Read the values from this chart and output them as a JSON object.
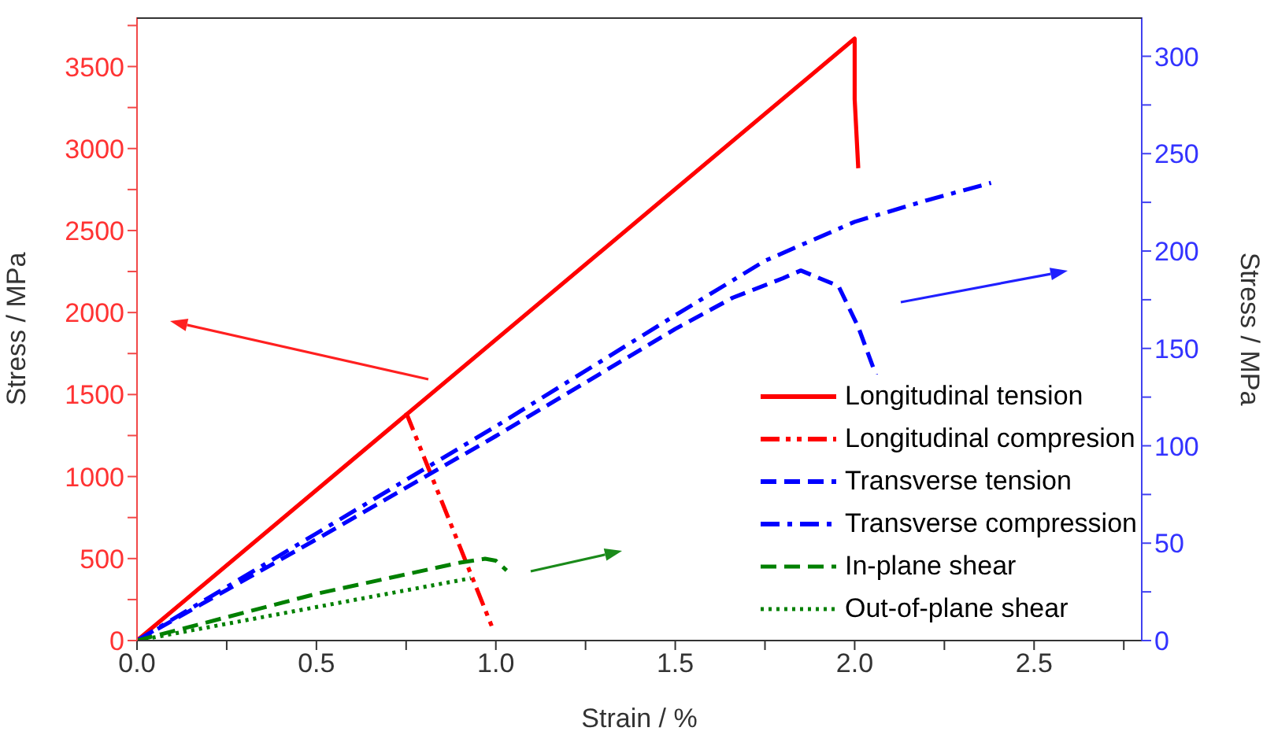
{
  "chart_data": {
    "type": "line",
    "xlabel": "Strain / %",
    "ylabel": "Stress / MPa",
    "y2label": "Stress / MPa",
    "xlim": [
      0,
      2.8
    ],
    "xticks": [
      {
        "value": 0,
        "label": "0.0"
      },
      {
        "value": 0.25,
        "label": null
      },
      {
        "value": 0.5,
        "label": "0.5"
      },
      {
        "value": 0.75,
        "label": null
      },
      {
        "value": 1.0,
        "label": "1.0"
      },
      {
        "value": 1.25,
        "label": null
      },
      {
        "value": 1.5,
        "label": "1.5"
      },
      {
        "value": 1.75,
        "label": null
      },
      {
        "value": 2.0,
        "label": "2.0"
      },
      {
        "value": 2.25,
        "label": null
      },
      {
        "value": 2.5,
        "label": "2.5"
      },
      {
        "value": 2.75,
        "label": null
      }
    ],
    "ylim": [
      0,
      3800
    ],
    "yticks": [
      0,
      {
        "value": 250,
        "label": null
      },
      500,
      {
        "value": 750,
        "label": null
      },
      1000,
      {
        "value": 1250,
        "label": null
      },
      1500,
      {
        "value": 1750,
        "label": null
      },
      2000,
      {
        "value": 2250,
        "label": null
      },
      2500,
      {
        "value": 2750,
        "label": null
      },
      3000,
      {
        "value": 3250,
        "label": null
      },
      3500,
      {
        "value": 3750,
        "label": null
      }
    ],
    "y2lim": [
      0,
      320
    ],
    "y2ticks": [
      0,
      {
        "value": 25,
        "label": null
      },
      50,
      {
        "value": 75,
        "label": null
      },
      100,
      {
        "value": 125,
        "label": null
      },
      150,
      {
        "value": 175,
        "label": null
      },
      200,
      {
        "value": 225,
        "label": null
      },
      250,
      {
        "value": 275,
        "label": null
      },
      300
    ],
    "legend": "bottom right",
    "marker": "none",
    "series": [
      {
        "name": "Longitudinal tension",
        "color": "#ff0000",
        "line_style": "solid",
        "x": [
          0,
          2.0,
          2.0,
          2.01
        ],
        "values": [
          0,
          3670,
          3300,
          2880
        ]
      },
      {
        "name": "Longitudinal compresion",
        "color": "#ff0000",
        "line_style": "dashdotdot",
        "x": [
          0.75,
          0.99
        ],
        "values": [
          1390,
          80
        ]
      },
      {
        "name": "Transverse tension",
        "color": "#0000ff",
        "line_style": "dashed",
        "axis": "y2",
        "x": [
          0,
          0.5,
          1.0,
          1.5,
          1.66,
          1.8,
          1.85,
          1.955,
          2.01,
          2.06
        ],
        "values": [
          0,
          52,
          105,
          160,
          176,
          186,
          190,
          182,
          161,
          136
        ]
      },
      {
        "name": "Transverse compression",
        "color": "#0000ff",
        "line_style": "dashdot",
        "axis": "y2",
        "x": [
          0,
          0.5,
          1.0,
          1.5,
          1.75,
          2.0,
          2.2,
          2.38
        ],
        "values": [
          0,
          55,
          110,
          167,
          195,
          215,
          226,
          235
        ]
      },
      {
        "name": "In-plane shear",
        "color": "#008000",
        "line_style": "dashed",
        "axis": "y2",
        "x": [
          0,
          0.5,
          0.9,
          0.97,
          1.0,
          1.03
        ],
        "values": [
          0,
          24,
          40,
          42,
          41,
          36
        ]
      },
      {
        "name": "Out-of-plane shear",
        "color": "#008000",
        "line_style": "dotted",
        "axis": "y2",
        "x": [
          0,
          0.93
        ],
        "values": [
          0,
          32
        ]
      }
    ]
  }
}
